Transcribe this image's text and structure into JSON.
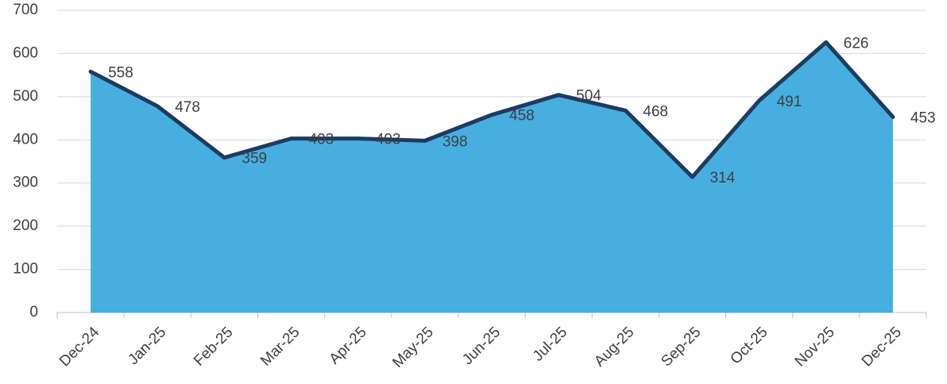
{
  "chart_data": {
    "type": "area",
    "categories": [
      "Dec-24",
      "Jan-25",
      "Feb-25",
      "Mar-25",
      "Apr-25",
      "May-25",
      "Jun-25",
      "Jul-25",
      "Aug-25",
      "Sep-25",
      "Oct-25",
      "Nov-25",
      "Dec-25"
    ],
    "values": [
      558,
      478,
      359,
      403,
      403,
      398,
      458,
      504,
      468,
      314,
      491,
      626,
      453
    ],
    "color": "#47aee0",
    "line_color": "#1b3c63",
    "ylim": [
      0,
      700
    ],
    "yticks": [
      0,
      100,
      200,
      300,
      400,
      500,
      600,
      700
    ],
    "grid": true
  }
}
